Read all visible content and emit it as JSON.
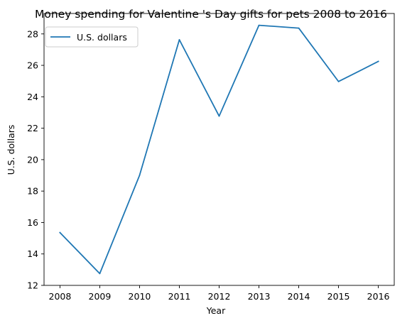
{
  "chart_data": {
    "type": "line",
    "title": "Money spending for Valentine 's Day gifts for pets 2008 to 2016",
    "xlabel": "Year",
    "ylabel": "U.S. dollars",
    "x": [
      2008,
      2009,
      2010,
      2011,
      2012,
      2013,
      2014,
      2015,
      2016
    ],
    "series": [
      {
        "name": "U.S. dollars",
        "color": "#1f77b4",
        "values": [
          15.36,
          12.75,
          19.0,
          27.63,
          22.77,
          28.55,
          28.37,
          24.97,
          26.25
        ]
      }
    ],
    "xlim": [
      2007.6,
      2016.4
    ],
    "ylim": [
      12,
      29.3
    ],
    "xticks": [
      "2008",
      "2009",
      "2010",
      "2011",
      "2012",
      "2013",
      "2014",
      "2015",
      "2016"
    ],
    "yticks": [
      "12",
      "14",
      "16",
      "18",
      "20",
      "22",
      "24",
      "26",
      "28"
    ],
    "legend": "top-left",
    "grid": false
  }
}
